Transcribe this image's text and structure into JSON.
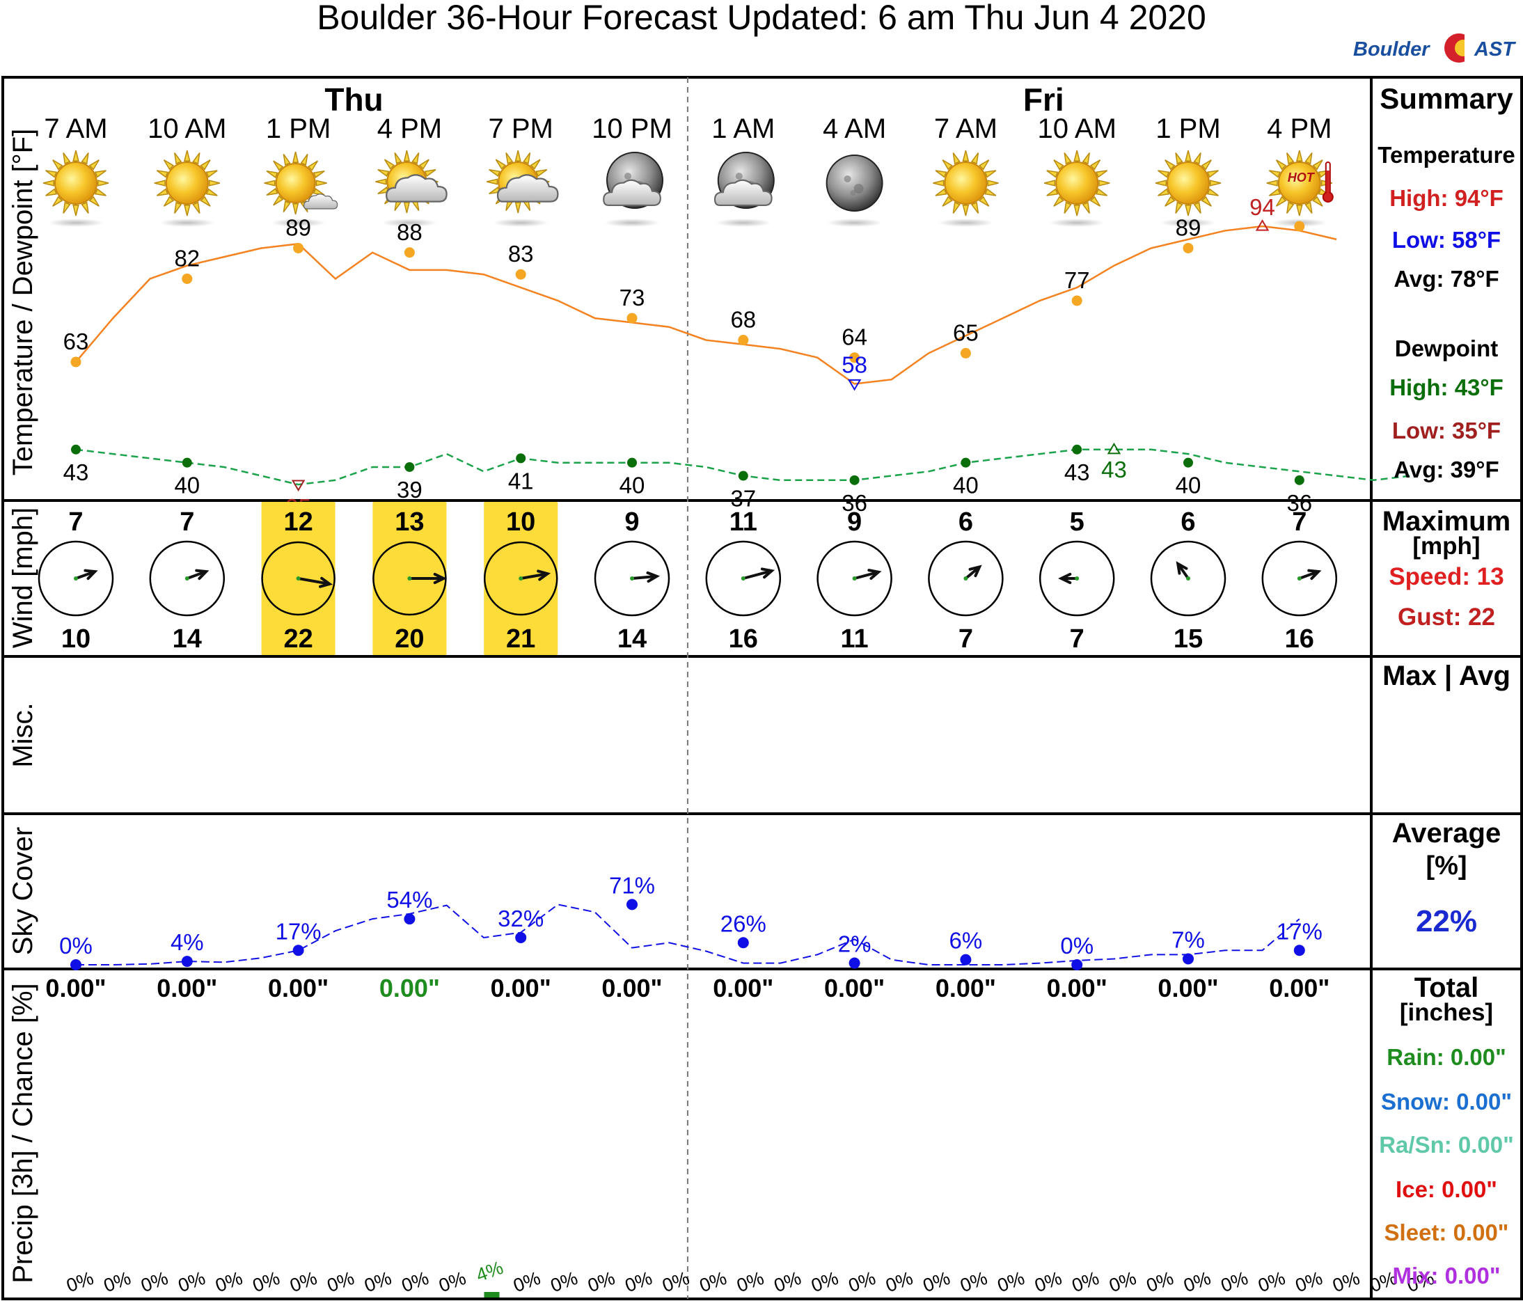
{
  "header": {
    "title": "Boulder 36-Hour Forecast Updated: 6 am Thu Jun 4 2020",
    "logo_text_left": "Boulder",
    "logo_text_right": "AST"
  },
  "days": [
    {
      "label": "Thu",
      "index": 2.5
    },
    {
      "label": "Fri",
      "index": 8.7
    }
  ],
  "times": [
    "7 AM",
    "10 AM",
    "1 PM",
    "4 PM",
    "7 PM",
    "10 PM",
    "1 AM",
    "4 AM",
    "7 AM",
    "10 AM",
    "1 PM",
    "4 PM"
  ],
  "icons": [
    "sun",
    "sun",
    "sun-cloud-small",
    "sun-cloud",
    "sun-cloud",
    "moon-cloud",
    "moon-cloud",
    "moon",
    "sun",
    "sun",
    "sun",
    "sun-hot"
  ],
  "hot_label": "HOT",
  "panels": {
    "temp": {
      "title": "Temperature / Dewpoint [°F]"
    },
    "wind": {
      "title": "Wind [mph]"
    },
    "misc": {
      "title": "Misc."
    },
    "sky": {
      "title": "Sky Cover"
    },
    "precip": {
      "title": "Precip [3h] / Chance [%]"
    }
  },
  "summary": {
    "temp": {
      "title": "Summary",
      "temperature_heading": "Temperature",
      "high": "High: 94°F",
      "low": "Low: 58°F",
      "avg": "Avg: 78°F",
      "dewpoint_heading": "Dewpoint",
      "dew_high": "High: 43°F",
      "dew_low": "Low: 35°F",
      "dew_avg": "Avg: 39°F"
    },
    "wind": {
      "title": "Maximum",
      "units": "[mph]",
      "speed": "Speed: 13",
      "gust": "Gust: 22"
    },
    "misc": {
      "title": "Max | Avg"
    },
    "sky": {
      "title": "Average",
      "units": "[%]",
      "value": "22%"
    },
    "precip": {
      "title": "Total",
      "units": "[inches]",
      "rain": "Rain: 0.00\"",
      "snow": "Snow: 0.00\"",
      "rasn": "Ra/Sn: 0.00\"",
      "ice": "Ice: 0.00\"",
      "sleet": "Sleet: 0.00\"",
      "mix": "Mix: 0.00\""
    }
  },
  "colors": {
    "temp": "#f58220",
    "temp_marker": "#f5a623",
    "dew": "#1aa34a",
    "dew_marker": "#0a6e0a",
    "sky": "#1010e6",
    "wind_highlight": "#fddc3a",
    "high_text": "#d02020",
    "low_text": "#1010e6",
    "dew_high_text": "#0a6e0a",
    "dew_low_text": "#a02020",
    "rain": "#1e8c1e",
    "snow": "#1a6fd0",
    "rasn": "#5fc8a8",
    "ice": "#e01010",
    "sleet": "#d07010",
    "mix": "#b030e0"
  },
  "chart_data": {
    "type": "line",
    "x_step_hours": 1,
    "temperature": {
      "labeled_values": [
        63,
        82,
        89,
        88,
        83,
        73,
        68,
        64,
        65,
        77,
        89,
        94
      ],
      "hourly": [
        63,
        73,
        82,
        85,
        87,
        89,
        90,
        82,
        88,
        84,
        84,
        83,
        80,
        77,
        73,
        72,
        71,
        68,
        67,
        66,
        64,
        58,
        59,
        65,
        69,
        73,
        77,
        80,
        85,
        89,
        91,
        93,
        94,
        93,
        91
      ],
      "high": {
        "value": 94,
        "index": 32
      },
      "low": {
        "value": 58,
        "index": 21
      }
    },
    "dewpoint": {
      "labeled_values": [
        43,
        40,
        35,
        39,
        41,
        40,
        37,
        36,
        40,
        43,
        40,
        36
      ],
      "hourly": [
        43,
        42,
        41,
        40,
        39,
        37,
        35,
        36,
        39,
        39,
        42,
        38,
        41,
        40,
        40,
        40,
        40,
        39,
        37,
        36,
        36,
        36,
        37,
        38,
        40,
        41,
        42,
        43,
        43,
        43,
        42,
        40,
        39,
        38,
        37,
        36,
        37
      ],
      "high": {
        "value": 43,
        "index": 28
      },
      "low": {
        "value": 35,
        "index": 6
      }
    },
    "wind": {
      "speed": [
        7,
        7,
        12,
        13,
        10,
        9,
        11,
        9,
        6,
        5,
        6,
        7
      ],
      "gust": [
        10,
        14,
        22,
        20,
        21,
        14,
        16,
        11,
        7,
        7,
        15,
        16
      ],
      "direction_deg": [
        250,
        250,
        280,
        270,
        260,
        265,
        255,
        255,
        230,
        90,
        145,
        250
      ],
      "highlight": [
        false,
        false,
        true,
        true,
        true,
        false,
        false,
        false,
        false,
        false,
        false,
        false
      ]
    },
    "sky_cover": {
      "labeled": [
        0,
        4,
        17,
        54,
        32,
        71,
        26,
        2,
        6,
        0,
        7,
        17
      ],
      "hourly": [
        0,
        0,
        1,
        4,
        3,
        8,
        17,
        40,
        54,
        60,
        70,
        32,
        38,
        71,
        62,
        20,
        26,
        16,
        2,
        2,
        12,
        30,
        6,
        0,
        0,
        0,
        2,
        5,
        7,
        12,
        12,
        17,
        17,
        54
      ],
      "ylim": [
        0,
        100
      ]
    },
    "precip": {
      "amounts": [
        "0.00\"",
        "0.00\"",
        "0.00\"",
        "0.00\"",
        "0.00\"",
        "0.00\"",
        "0.00\"",
        "0.00\"",
        "0.00\"",
        "0.00\"",
        "0.00\"",
        "0.00\""
      ],
      "amount_highlight": [
        false,
        false,
        false,
        true,
        false,
        false,
        false,
        false,
        false,
        false,
        false,
        false
      ],
      "chance_pct": [
        0,
        0,
        0,
        0,
        0,
        0,
        0,
        0,
        0,
        0,
        0,
        4,
        0,
        0,
        0,
        0,
        0,
        0,
        0,
        0,
        0,
        0,
        0,
        0,
        0,
        0,
        0,
        0,
        0,
        0,
        0,
        0,
        0,
        0,
        0,
        0,
        0
      ],
      "chance_labels": [
        "0%",
        "0%",
        "0%",
        "0%",
        "0%",
        "0%",
        "0%",
        "0%",
        "0%",
        "0%",
        "0%",
        "4%",
        "0%",
        "0%",
        "0%",
        "0%",
        "0%",
        "0%",
        "0%",
        "0%",
        "0%",
        "0%",
        "0%",
        "0%",
        "0%",
        "0%",
        "0%",
        "0%",
        "0%",
        "0%",
        "0%",
        "0%",
        "0%",
        "0%",
        "0%",
        "0%",
        "0%"
      ]
    }
  }
}
